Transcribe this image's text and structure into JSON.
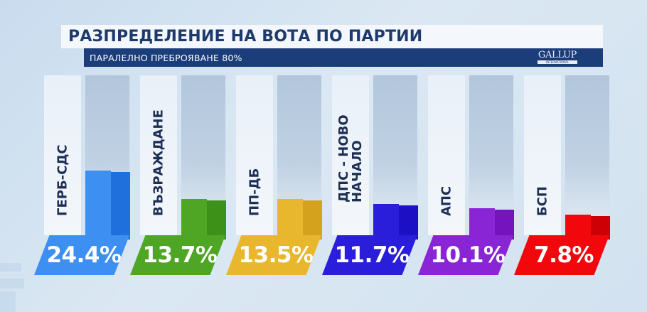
{
  "header": {
    "title": "РАЗПРЕДЕЛЕНИЕ НА ВОТА ПО ПАРТИИ",
    "subtitle": "ПАРАЛЕЛНО ПРЕБРОЯВАНЕ 80%",
    "logo": {
      "main": "GALLUP",
      "sub": "INTERNATIONAL"
    }
  },
  "colors": {
    "title": "#1d3a6e",
    "subtitle_bg": "#1b3d7a"
  },
  "parties": [
    {
      "name": "ГЕРБ-СДС",
      "value_label": "24.4%",
      "value": 24.4,
      "color": "#3d8ff2",
      "side_color": "#1f6fdc"
    },
    {
      "name": "ВЪЗРАЖДАНЕ",
      "value_label": "13.7%",
      "value": 13.7,
      "color": "#4ea624",
      "side_color": "#3d9118"
    },
    {
      "name": "ПП-ДБ",
      "value_label": "13.5%",
      "value": 13.5,
      "color": "#e8b72e",
      "side_color": "#d4a21c"
    },
    {
      "name": "ДПС - НОВО\nНАЧАЛО",
      "value_label": "11.7%",
      "value": 11.7,
      "color": "#2b1edb",
      "side_color": "#1d10c4"
    },
    {
      "name": "АПС",
      "value_label": "10.1%",
      "value": 10.1,
      "color": "#8a25d6",
      "side_color": "#7513bf"
    },
    {
      "name": "БСП",
      "value_label": "7.8%",
      "value": 7.8,
      "color": "#f2070c",
      "side_color": "#cc0005"
    }
  ],
  "chart_data": {
    "type": "bar",
    "title": "РАЗПРЕДЕЛЕНИЕ НА ВОТА ПО ПАРТИИ",
    "subtitle": "ПАРАЛЕЛНО ПРЕБРОЯВАНЕ 80%",
    "categories": [
      "ГЕРБ-СДС",
      "ВЪЗРАЖДАНЕ",
      "ПП-ДБ",
      "ДПС - НОВО НАЧАЛО",
      "АПС",
      "БСП"
    ],
    "values": [
      24.4,
      13.7,
      13.5,
      11.7,
      10.1,
      7.8
    ],
    "value_labels": [
      "24.4%",
      "13.7%",
      "13.5%",
      "11.7%",
      "10.1%",
      "7.8%"
    ],
    "colors": [
      "#3d8ff2",
      "#4ea624",
      "#e8b72e",
      "#2b1edb",
      "#8a25d6",
      "#f2070c"
    ],
    "xlabel": "",
    "ylabel": "",
    "unit": "%",
    "grid": false,
    "legend": "none",
    "source": "GALLUP INTERNATIONAL"
  }
}
